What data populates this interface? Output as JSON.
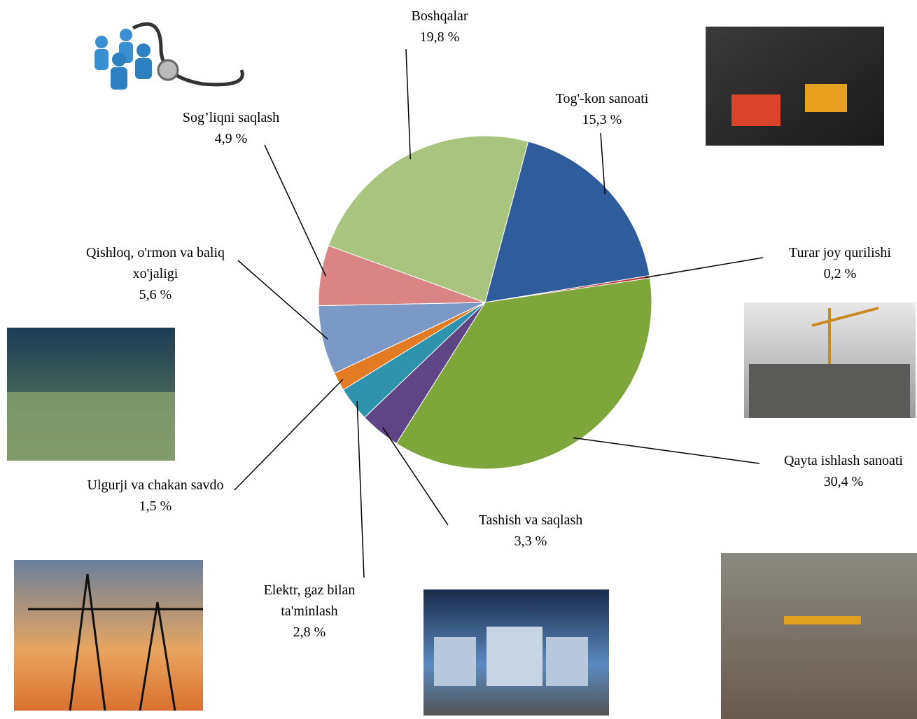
{
  "chart_data": {
    "type": "pie",
    "categories": [
      "Tog'-kon sanoati",
      "Turar joy qurilishi",
      "Qayta ishlash sanoati",
      "Tashish va saqlash",
      "Elektr, gaz bilan ta'minlash",
      "Ulgurji va chakan savdo",
      "Qishloq, o'rmon va baliq xo'jaligi",
      "Sog’liqni saqlash",
      "Boshqalar"
    ],
    "values": [
      15.3,
      0.2,
      30.4,
      3.3,
      2.8,
      1.5,
      5.6,
      4.9,
      19.8
    ],
    "value_labels": [
      "15,3 %",
      "0,2 %",
      "30,4 %",
      "3,3 %",
      "2,8 %",
      "1,5 %",
      "5,6 %",
      "4,9 %",
      "19,8 %"
    ],
    "colors": [
      "#2f5d9c",
      "#b83432",
      "#7fa63a",
      "#5e4585",
      "#2f93ad",
      "#e37b25",
      "#7b98c6",
      "#d98585",
      "#a9c47e"
    ]
  }
}
